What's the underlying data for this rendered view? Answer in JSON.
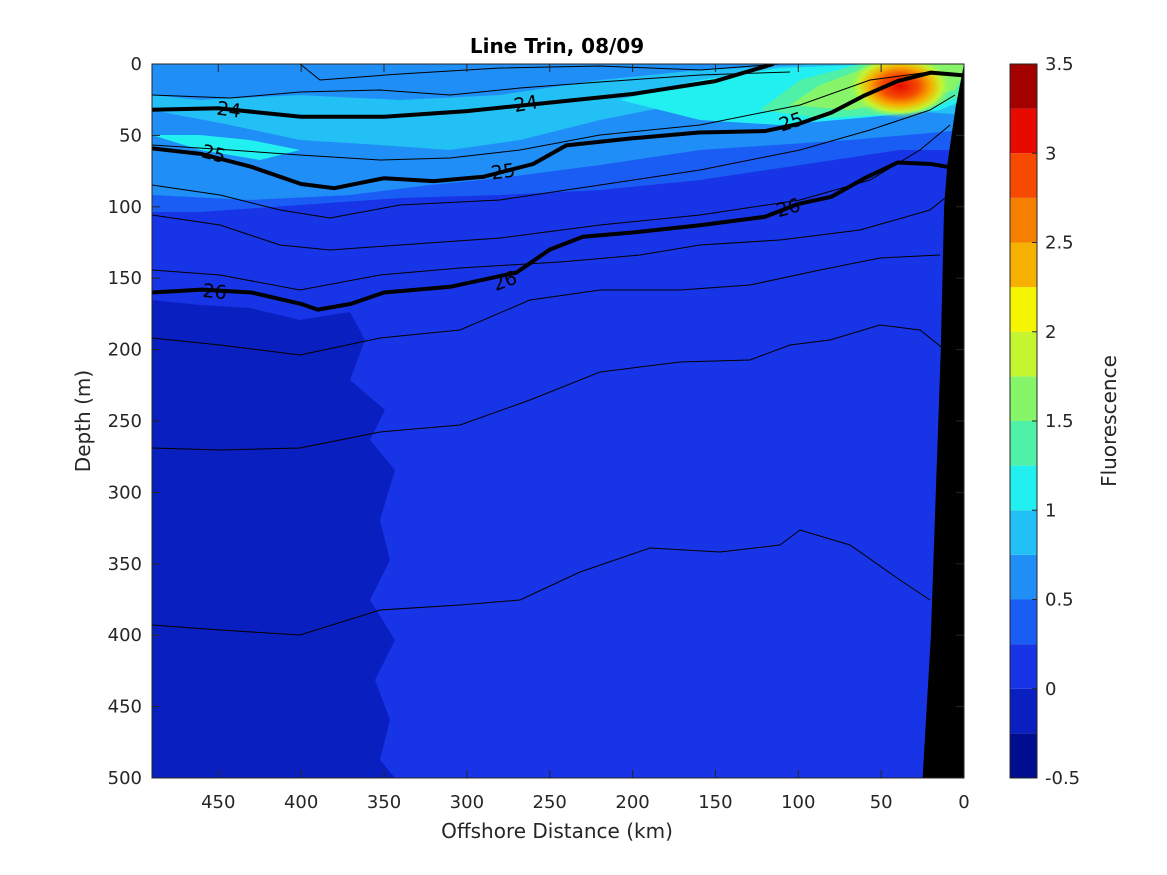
{
  "chart_data": {
    "type": "heatmap",
    "title": "Line Trin, 08/09",
    "xlabel": "Offshore Distance (km)",
    "ylabel": "Depth (m)",
    "colorbar_label": "Fluorescence",
    "xlim": [
      490,
      0
    ],
    "ylim": [
      0,
      500
    ],
    "x_reversed": true,
    "y_reversed": true,
    "x_ticks": [
      "450",
      "400",
      "350",
      "300",
      "250",
      "200",
      "150",
      "100",
      "50",
      "0"
    ],
    "x_tick_values": [
      450,
      400,
      350,
      300,
      250,
      200,
      150,
      100,
      50,
      0
    ],
    "y_ticks": [
      "0",
      "50",
      "100",
      "150",
      "200",
      "250",
      "300",
      "350",
      "400",
      "450",
      "500"
    ],
    "y_tick_values": [
      0,
      50,
      100,
      150,
      200,
      250,
      300,
      350,
      400,
      450,
      500
    ],
    "colorbar_ticks": [
      "3.5",
      "3",
      "2.5",
      "2",
      "1.5",
      "1",
      "0.5",
      "0",
      "-0.5"
    ],
    "colorbar_tick_values": [
      3.5,
      3,
      2.5,
      2,
      1.5,
      1,
      0.5,
      0,
      -0.5
    ],
    "colorbar_range": [
      -0.5,
      3.5
    ],
    "colorbar_levels": [
      {
        "from": -0.5,
        "to": -0.25,
        "color": "#000d8f"
      },
      {
        "from": -0.25,
        "to": 0,
        "color": "#0a1fbf"
      },
      {
        "from": 0,
        "to": 0.25,
        "color": "#1734e6"
      },
      {
        "from": 0.25,
        "to": 0.5,
        "color": "#1a5df5"
      },
      {
        "from": 0.5,
        "to": 0.75,
        "color": "#1f8ef7"
      },
      {
        "from": 0.75,
        "to": 1,
        "color": "#22c0f5"
      },
      {
        "from": 1,
        "to": 1.25,
        "color": "#22f0f0"
      },
      {
        "from": 1.25,
        "to": 1.5,
        "color": "#4ff0a8"
      },
      {
        "from": 1.5,
        "to": 1.75,
        "color": "#86f56a"
      },
      {
        "from": 1.75,
        "to": 2,
        "color": "#c4f530"
      },
      {
        "from": 2,
        "to": 2.25,
        "color": "#f5f500"
      },
      {
        "from": 2.25,
        "to": 2.5,
        "color": "#f5b000"
      },
      {
        "from": 2.5,
        "to": 2.75,
        "color": "#f57f00"
      },
      {
        "from": 2.75,
        "to": 3,
        "color": "#f54a00"
      },
      {
        "from": 3,
        "to": 3.25,
        "color": "#e60a00"
      },
      {
        "from": 3.25,
        "to": 3.5,
        "color": "#a30000"
      }
    ],
    "contour_labels": [
      "24",
      "24",
      "25",
      "25",
      "25",
      "26",
      "26",
      "26"
    ],
    "labeled_isopycnals": [
      {
        "level": 24,
        "points": [
          [
            490,
            32
          ],
          [
            450,
            31
          ],
          [
            400,
            37
          ],
          [
            350,
            37
          ],
          [
            300,
            33
          ],
          [
            250,
            27
          ],
          [
            200,
            21
          ],
          [
            150,
            12
          ],
          [
            115,
            0
          ]
        ]
      },
      {
        "level": 25,
        "points": [
          [
            490,
            59
          ],
          [
            460,
            63
          ],
          [
            430,
            72
          ],
          [
            400,
            84
          ],
          [
            380,
            87
          ],
          [
            350,
            80
          ],
          [
            320,
            82
          ],
          [
            290,
            79
          ],
          [
            260,
            70
          ],
          [
            240,
            57
          ],
          [
            200,
            52
          ],
          [
            160,
            48
          ],
          [
            120,
            47
          ],
          [
            100,
            42
          ],
          [
            80,
            34
          ],
          [
            60,
            22
          ],
          [
            40,
            12
          ],
          [
            20,
            6
          ],
          [
            0,
            8
          ]
        ]
      },
      {
        "level": 26,
        "points": [
          [
            490,
            160
          ],
          [
            460,
            158
          ],
          [
            430,
            160
          ],
          [
            400,
            168
          ],
          [
            390,
            172
          ],
          [
            370,
            168
          ],
          [
            350,
            160
          ],
          [
            310,
            156
          ],
          [
            270,
            146
          ],
          [
            250,
            130
          ],
          [
            230,
            121
          ],
          [
            200,
            118
          ],
          [
            160,
            113
          ],
          [
            120,
            107
          ],
          [
            100,
            98
          ],
          [
            80,
            93
          ],
          [
            60,
            80
          ],
          [
            40,
            69
          ],
          [
            20,
            70
          ],
          [
            10,
            72
          ]
        ]
      }
    ],
    "seafloor_edge": [
      [
        0,
        0
      ],
      [
        5,
        30
      ],
      [
        10,
        70
      ],
      [
        12,
        100
      ],
      [
        14,
        200
      ],
      [
        17,
        300
      ],
      [
        20,
        400
      ],
      [
        25,
        500
      ]
    ],
    "grid": false
  }
}
